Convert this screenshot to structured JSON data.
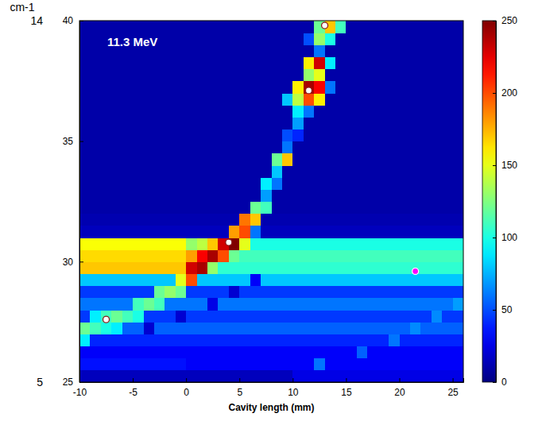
{
  "chart_data": {
    "type": "heatmap",
    "xlabel": "Cavity length (mm)",
    "y2label": "cm-1",
    "annotations": [
      "11.3 MeV"
    ],
    "xlim": [
      -10,
      26
    ],
    "xticks": [
      -10,
      -5,
      0,
      5,
      10,
      15,
      20,
      25
    ],
    "ylim": [
      25,
      40
    ],
    "yticks": [
      25,
      30,
      35,
      40
    ],
    "y2lim": [
      5,
      14
    ],
    "y2ticks": [
      5,
      14
    ],
    "colorbar": {
      "range": [
        0,
        250
      ],
      "ticks": [
        0,
        50,
        100,
        150,
        200,
        250
      ]
    },
    "points": {
      "x": [
        13,
        11.5,
        4,
        -7.5,
        21.5
      ],
      "y": [
        39.8,
        37.1,
        30.8,
        27.6,
        29.6
      ],
      "colors": [
        "#ffffff",
        "#ffffff",
        "#ffffff",
        "#ffffff",
        "#ff00ff"
      ]
    },
    "cells": {
      "x_edges": [
        -10,
        -9,
        -8,
        -7,
        -6,
        -5,
        -4,
        -3,
        -2,
        -1,
        0,
        1,
        2,
        3,
        4,
        5,
        6,
        7,
        8,
        9,
        10,
        11,
        12,
        13,
        14,
        15,
        16,
        17,
        18,
        19,
        20,
        21,
        22,
        23,
        24,
        25,
        26
      ],
      "y_edges": [
        25,
        25.5,
        26,
        26.5,
        27,
        27.5,
        28,
        28.5,
        29,
        29.5,
        30,
        30.5,
        31,
        31.5,
        32,
        32.5,
        33,
        33.5,
        34,
        34.5,
        35,
        35.5,
        36,
        36.5,
        37,
        37.5,
        38,
        38.5,
        39,
        39.5,
        40
      ],
      "values": [
        [
          15,
          15,
          15,
          15,
          15,
          15,
          15,
          15,
          15,
          15,
          15,
          15,
          15,
          15,
          15,
          15,
          15,
          15,
          15,
          15,
          25,
          25,
          25,
          25,
          25,
          25,
          25,
          25,
          25,
          25,
          25,
          25,
          25,
          25,
          25,
          25
        ],
        [
          35,
          35,
          35,
          35,
          35,
          35,
          35,
          35,
          35,
          35,
          30,
          30,
          30,
          30,
          30,
          30,
          30,
          30,
          30,
          30,
          30,
          30,
          60,
          30,
          30,
          30,
          30,
          30,
          30,
          30,
          30,
          30,
          30,
          30,
          30,
          30
        ],
        [
          30,
          30,
          30,
          30,
          30,
          30,
          30,
          30,
          30,
          30,
          30,
          30,
          30,
          30,
          30,
          30,
          30,
          30,
          30,
          30,
          30,
          30,
          30,
          30,
          30,
          30,
          55,
          30,
          30,
          30,
          30,
          30,
          30,
          30,
          30,
          30
        ],
        [
          90,
          40,
          40,
          40,
          40,
          40,
          40,
          40,
          40,
          40,
          40,
          40,
          40,
          40,
          40,
          40,
          40,
          40,
          40,
          40,
          40,
          40,
          40,
          40,
          40,
          40,
          40,
          40,
          40,
          60,
          40,
          40,
          40,
          40,
          40,
          40
        ],
        [
          120,
          110,
          100,
          90,
          55,
          55,
          20,
          55,
          55,
          55,
          55,
          55,
          55,
          55,
          55,
          55,
          55,
          55,
          55,
          55,
          55,
          55,
          55,
          55,
          55,
          55,
          55,
          55,
          55,
          55,
          55,
          65,
          55,
          55,
          55,
          55
        ],
        [
          45,
          90,
          110,
          120,
          110,
          100,
          45,
          45,
          45,
          20,
          45,
          45,
          45,
          45,
          45,
          45,
          45,
          45,
          45,
          45,
          45,
          45,
          45,
          45,
          45,
          45,
          45,
          45,
          45,
          45,
          45,
          45,
          45,
          65,
          45,
          45
        ],
        [
          60,
          60,
          60,
          60,
          60,
          110,
          120,
          110,
          60,
          60,
          60,
          60,
          25,
          60,
          60,
          60,
          60,
          60,
          60,
          60,
          60,
          60,
          60,
          60,
          60,
          60,
          60,
          60,
          60,
          60,
          60,
          60,
          60,
          60,
          60,
          70
        ],
        [
          45,
          45,
          45,
          45,
          45,
          45,
          45,
          120,
          130,
          120,
          45,
          45,
          45,
          45,
          20,
          45,
          45,
          45,
          45,
          45,
          45,
          45,
          45,
          45,
          45,
          45,
          45,
          45,
          45,
          45,
          45,
          45,
          45,
          45,
          45,
          45
        ],
        [
          80,
          80,
          80,
          80,
          80,
          80,
          80,
          80,
          80,
          150,
          200,
          80,
          80,
          80,
          80,
          80,
          30,
          80,
          80,
          80,
          80,
          80,
          80,
          80,
          80,
          80,
          80,
          80,
          80,
          80,
          80,
          80,
          80,
          80,
          80,
          80
        ],
        [
          170,
          170,
          170,
          170,
          170,
          170,
          170,
          170,
          170,
          170,
          230,
          240,
          130,
          105,
          105,
          105,
          105,
          105,
          105,
          105,
          105,
          105,
          105,
          105,
          105,
          105,
          105,
          105,
          105,
          105,
          105,
          105,
          105,
          105,
          105,
          105
        ],
        [
          165,
          165,
          165,
          165,
          165,
          165,
          165,
          165,
          165,
          165,
          180,
          220,
          240,
          200,
          120,
          110,
          110,
          110,
          110,
          110,
          110,
          110,
          110,
          110,
          110,
          110,
          110,
          110,
          110,
          110,
          110,
          110,
          110,
          110,
          110,
          110
        ],
        [
          155,
          155,
          155,
          155,
          155,
          155,
          155,
          155,
          155,
          155,
          130,
          140,
          170,
          230,
          250,
          150,
          100,
          100,
          100,
          100,
          100,
          100,
          100,
          100,
          100,
          100,
          100,
          100,
          100,
          100,
          100,
          100,
          100,
          100,
          100,
          100
        ],
        [
          15,
          15,
          15,
          15,
          15,
          15,
          15,
          15,
          15,
          15,
          15,
          15,
          15,
          15,
          180,
          200,
          60,
          15,
          15,
          15,
          15,
          15,
          15,
          15,
          15,
          15,
          15,
          15,
          15,
          15,
          15,
          15,
          15,
          15,
          15,
          15
        ],
        [
          12,
          12,
          12,
          12,
          12,
          12,
          12,
          12,
          12,
          12,
          12,
          12,
          12,
          12,
          12,
          190,
          170,
          12,
          12,
          12,
          12,
          12,
          12,
          12,
          12,
          12,
          12,
          12,
          12,
          12,
          12,
          12,
          12,
          12,
          12,
          12
        ],
        [
          10,
          10,
          10,
          10,
          10,
          10,
          10,
          10,
          10,
          10,
          10,
          10,
          10,
          10,
          10,
          10,
          120,
          110,
          10,
          10,
          10,
          10,
          10,
          10,
          10,
          10,
          10,
          10,
          10,
          10,
          10,
          10,
          10,
          10,
          10,
          10
        ],
        [
          10,
          10,
          10,
          10,
          10,
          10,
          10,
          10,
          10,
          10,
          10,
          10,
          10,
          10,
          10,
          10,
          10,
          70,
          10,
          10,
          10,
          10,
          10,
          10,
          10,
          10,
          10,
          10,
          10,
          10,
          10,
          10,
          10,
          10,
          10,
          10
        ],
        [
          10,
          10,
          10,
          10,
          10,
          10,
          10,
          10,
          10,
          10,
          10,
          10,
          10,
          10,
          10,
          10,
          10,
          90,
          60,
          10,
          10,
          10,
          10,
          10,
          10,
          10,
          10,
          10,
          10,
          10,
          10,
          10,
          10,
          10,
          10,
          10
        ],
        [
          10,
          10,
          10,
          10,
          10,
          10,
          10,
          10,
          10,
          10,
          10,
          10,
          10,
          10,
          10,
          10,
          10,
          10,
          80,
          10,
          10,
          10,
          10,
          10,
          10,
          10,
          10,
          10,
          10,
          10,
          10,
          10,
          10,
          10,
          10,
          10
        ],
        [
          10,
          10,
          10,
          10,
          10,
          10,
          10,
          10,
          10,
          10,
          10,
          10,
          10,
          10,
          10,
          10,
          10,
          10,
          120,
          170,
          10,
          10,
          10,
          10,
          10,
          10,
          10,
          10,
          10,
          10,
          10,
          10,
          10,
          10,
          10,
          10
        ],
        [
          10,
          10,
          10,
          10,
          10,
          10,
          10,
          10,
          10,
          10,
          10,
          10,
          10,
          10,
          10,
          10,
          10,
          10,
          10,
          60,
          10,
          10,
          10,
          10,
          10,
          10,
          10,
          10,
          10,
          10,
          10,
          10,
          10,
          10,
          10,
          10
        ],
        [
          10,
          10,
          10,
          10,
          10,
          10,
          10,
          10,
          10,
          10,
          10,
          10,
          10,
          10,
          10,
          10,
          10,
          10,
          10,
          50,
          40,
          10,
          10,
          10,
          10,
          10,
          10,
          10,
          10,
          10,
          10,
          10,
          10,
          10,
          10,
          10
        ],
        [
          10,
          10,
          10,
          10,
          10,
          10,
          10,
          10,
          10,
          10,
          10,
          10,
          10,
          10,
          10,
          10,
          10,
          10,
          10,
          10,
          70,
          10,
          10,
          10,
          10,
          10,
          10,
          10,
          10,
          10,
          10,
          10,
          10,
          10,
          10,
          10
        ],
        [
          10,
          10,
          10,
          10,
          10,
          10,
          10,
          10,
          10,
          10,
          10,
          10,
          10,
          10,
          10,
          10,
          10,
          10,
          10,
          10,
          90,
          60,
          10,
          10,
          10,
          10,
          10,
          10,
          10,
          10,
          10,
          10,
          10,
          10,
          10,
          10
        ],
        [
          10,
          10,
          10,
          10,
          10,
          10,
          10,
          10,
          10,
          10,
          10,
          10,
          10,
          10,
          10,
          10,
          10,
          10,
          10,
          80,
          140,
          200,
          160,
          10,
          10,
          10,
          10,
          10,
          10,
          10,
          10,
          10,
          10,
          10,
          10,
          10
        ],
        [
          10,
          10,
          10,
          10,
          10,
          10,
          10,
          10,
          10,
          10,
          10,
          10,
          10,
          10,
          10,
          10,
          10,
          10,
          10,
          10,
          160,
          240,
          220,
          60,
          10,
          10,
          10,
          10,
          10,
          10,
          10,
          10,
          10,
          10,
          10,
          10
        ],
        [
          10,
          10,
          10,
          10,
          10,
          10,
          10,
          10,
          10,
          10,
          10,
          10,
          10,
          10,
          10,
          10,
          10,
          10,
          10,
          10,
          10,
          130,
          150,
          10,
          10,
          10,
          10,
          10,
          10,
          10,
          10,
          10,
          10,
          10,
          10,
          10
        ],
        [
          10,
          10,
          10,
          10,
          10,
          10,
          10,
          10,
          10,
          10,
          10,
          10,
          10,
          10,
          10,
          10,
          10,
          10,
          10,
          10,
          10,
          160,
          230,
          90,
          10,
          10,
          10,
          10,
          10,
          10,
          10,
          10,
          10,
          10,
          10,
          10
        ],
        [
          10,
          10,
          10,
          10,
          10,
          10,
          10,
          10,
          10,
          10,
          10,
          10,
          10,
          10,
          10,
          10,
          10,
          10,
          10,
          10,
          10,
          10,
          60,
          10,
          10,
          10,
          10,
          10,
          10,
          10,
          10,
          10,
          10,
          10,
          10,
          10
        ],
        [
          10,
          10,
          10,
          10,
          10,
          10,
          10,
          10,
          10,
          10,
          10,
          10,
          10,
          10,
          10,
          10,
          10,
          10,
          10,
          10,
          10,
          50,
          130,
          100,
          10,
          10,
          10,
          10,
          10,
          10,
          10,
          10,
          10,
          10,
          10,
          10
        ],
        [
          10,
          10,
          10,
          10,
          10,
          10,
          10,
          10,
          10,
          10,
          10,
          10,
          10,
          10,
          10,
          10,
          10,
          10,
          10,
          10,
          10,
          10,
          120,
          170,
          110,
          10,
          10,
          10,
          10,
          10,
          10,
          10,
          10,
          10,
          10,
          10
        ]
      ]
    }
  }
}
